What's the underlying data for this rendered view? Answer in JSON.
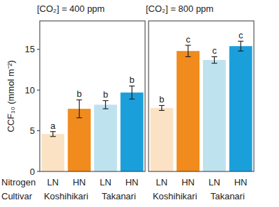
{
  "chart_data": [
    {
      "type": "bar",
      "title": "[CO₂] = 400 ppm",
      "y_label": "CCF₁₀ (mmol m⁻²)",
      "x_label": "Nitrogen",
      "group_label": "Cultivar",
      "categories": [
        "LN",
        "HN",
        "LN",
        "HN"
      ],
      "groups": [
        "Koshihikari",
        "Takanari"
      ],
      "values": [
        4.6,
        7.7,
        8.2,
        9.7
      ],
      "errors": [
        0.3,
        1.1,
        0.5,
        0.8
      ],
      "annotations": [
        "a",
        "b",
        "b",
        "b"
      ],
      "colors": [
        "#fbe2c4",
        "#f18b1d",
        "#bfe2ef",
        "#1b9fdb"
      ],
      "ylim": [
        0,
        18.5
      ],
      "yticks": [
        0,
        5,
        10,
        15
      ]
    },
    {
      "type": "bar",
      "title": "[CO₂] = 800 ppm",
      "categories": [
        "LN",
        "HN",
        "LN",
        "HN"
      ],
      "groups": [
        "Koshihikari",
        "Takanari"
      ],
      "values": [
        7.8,
        14.8,
        13.7,
        15.4
      ],
      "errors": [
        0.3,
        0.7,
        0.4,
        0.6
      ],
      "annotations": [
        "b",
        "c",
        "c",
        "c"
      ],
      "colors": [
        "#fbe2c4",
        "#f18b1d",
        "#bfe2ef",
        "#1b9fdb"
      ],
      "ylim": [
        0,
        18.5
      ],
      "yticks": [
        0,
        5,
        10,
        15
      ],
      "tick_labels": "x"
    }
  ]
}
